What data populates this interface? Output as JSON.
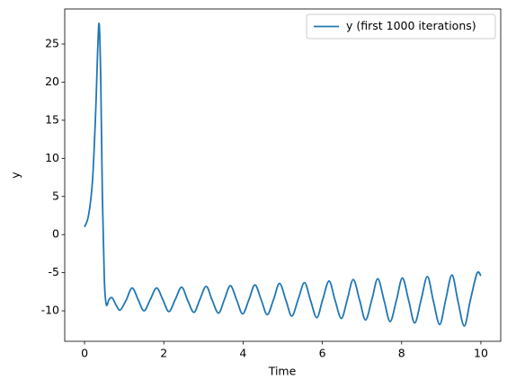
{
  "chart_data": {
    "type": "line",
    "xlabel": "Time",
    "ylabel": "y",
    "x": [
      0,
      0.1,
      0.2,
      0.28,
      0.33,
      0.37,
      0.41,
      0.45,
      0.5,
      0.55,
      0.62,
      0.7,
      0.8,
      0.9,
      1.05,
      1.2,
      1.35,
      1.5,
      1.66,
      1.82,
      1.98,
      2.13,
      2.29,
      2.45,
      2.6,
      2.76,
      2.91,
      3.07,
      3.22,
      3.38,
      3.53,
      3.68,
      3.84,
      3.99,
      4.15,
      4.3,
      4.46,
      4.61,
      4.77,
      4.92,
      5.08,
      5.23,
      5.39,
      5.55,
      5.7,
      5.86,
      6.01,
      6.17,
      6.32,
      6.48,
      6.63,
      6.78,
      6.94,
      7.09,
      7.25,
      7.4,
      7.56,
      7.71,
      7.87,
      8.02,
      8.18,
      8.33,
      8.49,
      8.65,
      8.8,
      8.96,
      9.11,
      9.27,
      9.42,
      9.58,
      9.73,
      9.9,
      10.0
    ],
    "series": [
      {
        "name": "y (first 1000 iterations)",
        "color": "#1f77b4",
        "values": [
          1.0,
          2.5,
          7,
          16,
          24,
          27.6,
          20,
          5,
          -6,
          -9.2,
          -8.5,
          -8.3,
          -9.3,
          -9.9,
          -8.6,
          -7.0,
          -8.5,
          -10.0,
          -8.5,
          -7.0,
          -8.6,
          -10.1,
          -8.5,
          -6.9,
          -8.6,
          -10.2,
          -8.5,
          -6.8,
          -8.6,
          -10.3,
          -8.5,
          -6.7,
          -8.6,
          -10.4,
          -8.5,
          -6.6,
          -8.6,
          -10.5,
          -8.5,
          -6.4,
          -8.6,
          -10.7,
          -8.5,
          -6.3,
          -8.6,
          -10.9,
          -8.5,
          -6.1,
          -8.6,
          -11.0,
          -8.5,
          -5.9,
          -8.6,
          -11.2,
          -8.5,
          -5.8,
          -8.7,
          -11.4,
          -8.6,
          -5.7,
          -8.7,
          -11.6,
          -8.6,
          -5.5,
          -8.7,
          -11.8,
          -8.6,
          -5.3,
          -8.7,
          -12.0,
          -8.7,
          -5.1,
          -5.4
        ]
      }
    ],
    "xlim": [
      -0.5,
      10.5
    ],
    "ylim": [
      -14,
      29.6
    ],
    "xticks": [
      0,
      2,
      4,
      6,
      8,
      10
    ],
    "yticks": [
      -10,
      -5,
      0,
      5,
      10,
      15,
      20,
      25
    ],
    "legend": "upper right"
  }
}
